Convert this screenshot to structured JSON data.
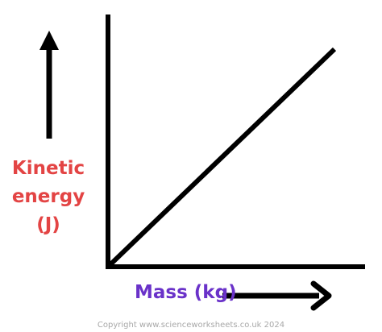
{
  "y_axis_label": [
    "Kinetic",
    "energy",
    "(J)"
  ],
  "x_axis_label": "Mass (kg)",
  "copyright": "Copyright www.scienceworksheets.co.uk 2024",
  "colors": {
    "axes": "#000000",
    "y_label": "#e34444",
    "x_label": "#6a32c9",
    "copyright": "#a8a8a8"
  },
  "relationship": "directly proportional (straight line through origin)"
}
